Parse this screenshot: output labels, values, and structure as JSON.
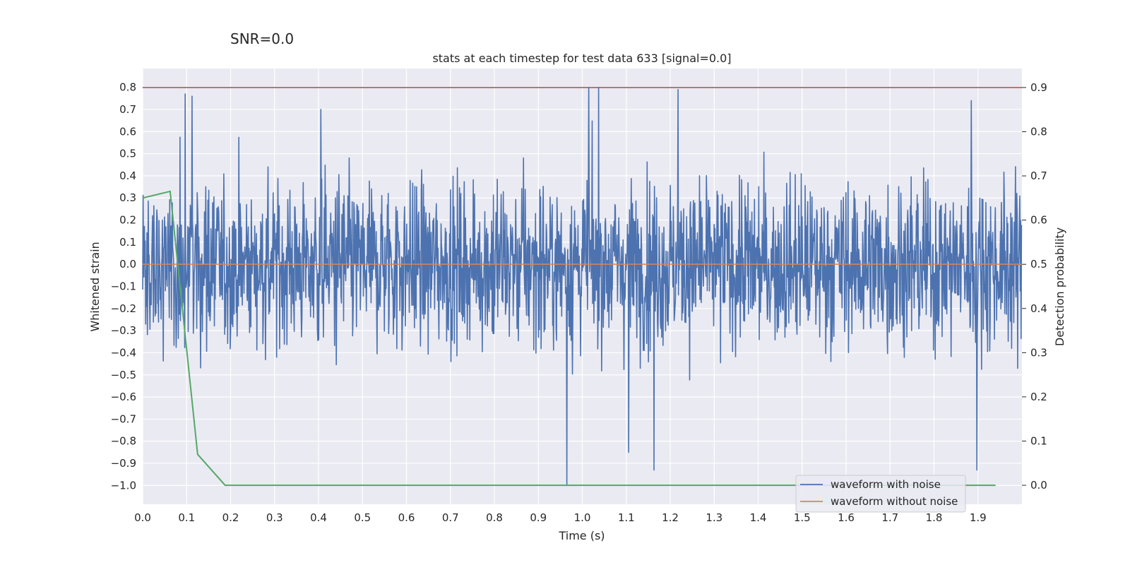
{
  "suptitle": "SNR=0.0",
  "chart_data": {
    "type": "line",
    "title": "stats at each timestep for test data 633 [signal=0.0]",
    "xlabel": "Time (s)",
    "ylabel_left": "Whitened strain",
    "ylabel_right": "Detection probability",
    "xlim": [
      0.0,
      2.0
    ],
    "ylim_left": [
      -1.085,
      0.885
    ],
    "ylim_right": [
      -0.043,
      0.943
    ],
    "x_ticks": [
      0.0,
      0.1,
      0.2,
      0.3,
      0.4,
      0.5,
      0.6,
      0.7,
      0.8,
      0.9,
      1.0,
      1.1,
      1.2,
      1.3,
      1.4,
      1.5,
      1.6,
      1.7,
      1.8,
      1.9
    ],
    "x_tick_labels": [
      "0.0",
      "0.1",
      "0.2",
      "0.3",
      "0.4",
      "0.5",
      "0.6",
      "0.7",
      "0.8",
      "0.9",
      "1.0",
      "1.1",
      "1.2",
      "1.3",
      "1.4",
      "1.5",
      "1.6",
      "1.7",
      "1.8",
      "1.9"
    ],
    "y_left_ticks": [
      0.8,
      0.7,
      0.6,
      0.5,
      0.4,
      0.3,
      0.2,
      0.1,
      0.0,
      -0.1,
      -0.2,
      -0.3,
      -0.4,
      -0.5,
      -0.6,
      -0.7,
      -0.8,
      -0.9,
      -1.0
    ],
    "y_left_tick_labels": [
      "0.8",
      "0.7",
      "0.6",
      "0.5",
      "0.4",
      "0.3",
      "0.2",
      "0.1",
      "0.0",
      "−0.1",
      "−0.2",
      "−0.3",
      "−0.4",
      "−0.5",
      "−0.6",
      "−0.7",
      "−0.8",
      "−0.9",
      "−1.0"
    ],
    "y_right_ticks": [
      0.9,
      0.8,
      0.7,
      0.6,
      0.5,
      0.4,
      0.3,
      0.2,
      0.1,
      0.0
    ],
    "y_right_tick_labels": [
      "0.9",
      "0.8",
      "0.7",
      "0.6",
      "0.5",
      "0.4",
      "0.3",
      "0.2",
      "0.1",
      "0.0"
    ],
    "grid": true,
    "legend_position": "bottom-right",
    "series": [
      {
        "name": "waveform with noise",
        "color": "#4c72b0",
        "axis": "left",
        "kind": "noise",
        "n_samples": 2048,
        "range": [
          -1.0,
          0.8
        ],
        "notable_peaks": [
          {
            "x": 0.097,
            "y": 0.77
          },
          {
            "x": 0.112,
            "y": 0.76
          },
          {
            "x": 0.405,
            "y": 0.7
          },
          {
            "x": 1.015,
            "y": 0.8
          },
          {
            "x": 1.037,
            "y": 0.8
          },
          {
            "x": 1.218,
            "y": 0.79
          },
          {
            "x": 1.885,
            "y": 0.74
          },
          {
            "x": 0.965,
            "y": -1.0
          },
          {
            "x": 1.897,
            "y": -0.93
          },
          {
            "x": 1.163,
            "y": -0.93
          },
          {
            "x": 1.105,
            "y": -0.85
          }
        ]
      },
      {
        "name": "waveform without noise",
        "color": "#dd8452",
        "axis": "left",
        "x": [
          0.0,
          2.0
        ],
        "y": [
          0.0,
          0.0
        ]
      },
      {
        "name": "detection probability",
        "color": "#55a868",
        "axis": "right",
        "x": [
          0.0,
          0.0625,
          0.125,
          0.1875,
          1.94
        ],
        "y": [
          0.65,
          0.665,
          0.07,
          0.0,
          0.0
        ]
      }
    ],
    "threshold": {
      "axis": "right",
      "value": 0.9,
      "color": "#c44e52"
    }
  },
  "legend": {
    "item1": "waveform with noise",
    "item2": "waveform without noise"
  }
}
